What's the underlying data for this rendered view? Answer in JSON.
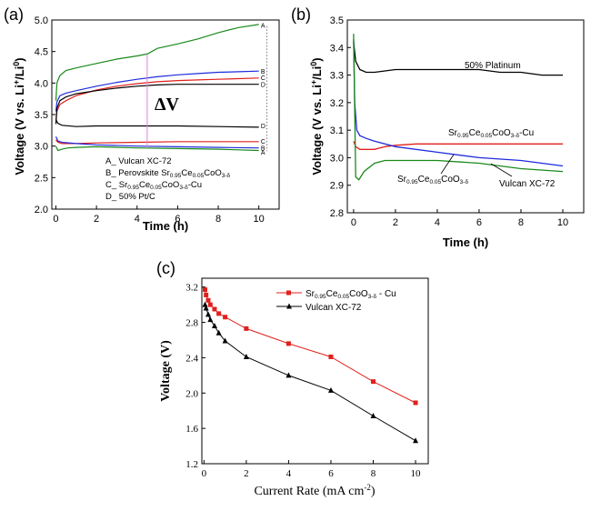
{
  "chart_data": [
    {
      "panel": "(a)",
      "type": "line",
      "xlabel": "Time (h)",
      "ylabel": "Voltage (V vs. Li+/Li0)",
      "xlim": [
        -0.2,
        11
      ],
      "ylim": [
        2.0,
        5.0
      ],
      "xticks": [
        "0",
        "2",
        "4",
        "6",
        "8",
        "10"
      ],
      "yticks": [
        "2.0",
        "2.5",
        "3.0",
        "3.5",
        "4.0",
        "4.5",
        "5.0"
      ],
      "annotation": "ΔV",
      "legend": [
        "A_ Vulcan XC-72",
        "B_ Perovskite Sr0.95Ce0.05CoO3-δ",
        "C_ Sr0.95Ce0.05CoO3-δ-Cu",
        "D_ 50% Pt/C"
      ],
      "end_labels": [
        {
          "label": "A",
          "y": 4.92
        },
        {
          "label": "B",
          "y": 4.19
        },
        {
          "label": "C",
          "y": 4.09
        },
        {
          "label": "D",
          "y": 3.98
        },
        {
          "label": "D",
          "y": 3.33
        },
        {
          "label": "C",
          "y": 3.08
        },
        {
          "label": "B",
          "y": 2.97
        },
        {
          "label": "A",
          "y": 2.91
        }
      ],
      "series": [
        {
          "key": "A",
          "phase": "charge",
          "color": "#1a8a1a",
          "x": [
            0,
            0.05,
            0.2,
            0.5,
            1,
            2,
            3,
            4,
            4.5,
            5,
            6,
            7,
            8,
            9,
            10
          ],
          "y": [
            3.72,
            4.0,
            4.12,
            4.2,
            4.24,
            4.31,
            4.38,
            4.43,
            4.46,
            4.55,
            4.62,
            4.7,
            4.8,
            4.88,
            4.93
          ]
        },
        {
          "key": "B",
          "phase": "charge",
          "color": "#1f2bdc",
          "x": [
            0,
            0.05,
            0.2,
            0.5,
            1,
            2,
            3,
            4,
            5,
            6,
            7,
            8,
            9,
            10
          ],
          "y": [
            3.55,
            3.7,
            3.8,
            3.84,
            3.88,
            3.95,
            4.01,
            4.06,
            4.1,
            4.13,
            4.15,
            4.17,
            4.18,
            4.19
          ]
        },
        {
          "key": "C",
          "phase": "charge",
          "color": "#e0201c",
          "x": [
            0,
            0.05,
            0.2,
            0.5,
            1,
            2,
            3,
            4,
            5,
            6,
            7,
            8,
            9,
            10
          ],
          "y": [
            3.4,
            3.55,
            3.66,
            3.72,
            3.8,
            3.89,
            3.95,
            3.99,
            4.02,
            4.04,
            4.05,
            4.06,
            4.07,
            4.08
          ]
        },
        {
          "key": "D",
          "phase": "charge",
          "color": "#000000",
          "x": [
            0,
            0.05,
            0.2,
            0.5,
            1,
            2,
            3,
            4,
            5,
            6,
            7,
            8,
            9,
            10
          ],
          "y": [
            3.35,
            3.6,
            3.72,
            3.78,
            3.83,
            3.88,
            3.92,
            3.95,
            3.97,
            3.98,
            3.98,
            3.98,
            3.98,
            3.98
          ]
        },
        {
          "key": "D",
          "phase": "discharge",
          "color": "#000000",
          "x": [
            0,
            0.1,
            0.3,
            1,
            2,
            4,
            6,
            8,
            10
          ],
          "y": [
            3.42,
            3.36,
            3.33,
            3.31,
            3.32,
            3.32,
            3.32,
            3.31,
            3.3
          ]
        },
        {
          "key": "C",
          "phase": "discharge",
          "color": "#e0201c",
          "x": [
            0,
            0.1,
            0.3,
            1,
            2,
            4,
            6,
            8,
            10
          ],
          "y": [
            3.1,
            3.06,
            3.04,
            3.04,
            3.05,
            3.06,
            3.07,
            3.07,
            3.07
          ]
        },
        {
          "key": "B",
          "phase": "discharge",
          "color": "#1f2bdc",
          "x": [
            0,
            0.1,
            0.3,
            1,
            2,
            4,
            6,
            8,
            10
          ],
          "y": [
            3.15,
            3.08,
            3.06,
            3.04,
            3.02,
            3.0,
            2.99,
            2.98,
            2.97
          ]
        },
        {
          "key": "A",
          "phase": "discharge",
          "color": "#1a8a1a",
          "x": [
            0,
            0.1,
            0.3,
            0.6,
            1,
            2,
            4,
            6,
            8,
            10
          ],
          "y": [
            3.0,
            2.93,
            2.95,
            2.97,
            2.98,
            2.99,
            2.97,
            2.96,
            2.95,
            2.93
          ]
        }
      ]
    },
    {
      "panel": "(b)",
      "type": "line",
      "xlabel": "Time (h)",
      "ylabel": "Voltage (V vs. Li+/Li0)",
      "xlim": [
        -0.3,
        11
      ],
      "ylim": [
        2.8,
        3.5
      ],
      "xticks": [
        "0",
        "2",
        "4",
        "6",
        "8",
        "10"
      ],
      "yticks": [
        "2.8",
        "2.9",
        "3.0",
        "3.1",
        "3.2",
        "3.3",
        "3.4",
        "3.5"
      ],
      "labels": [
        "50% Platinum",
        "Sr0.95Ce0.05CoO3-δ-Cu",
        "Sr0.95Ce0.05CoO3-δ",
        "Vulcan XC-72"
      ],
      "series": [
        {
          "name": "50% Platinum",
          "color": "#000000",
          "x": [
            0,
            0.1,
            0.3,
            0.6,
            1,
            2,
            3,
            4,
            5,
            6,
            7,
            8,
            9,
            10
          ],
          "y": [
            3.42,
            3.35,
            3.32,
            3.31,
            3.31,
            3.32,
            3.32,
            3.32,
            3.32,
            3.32,
            3.31,
            3.31,
            3.3,
            3.3
          ]
        },
        {
          "name": "Sr0.95Ce0.05CoO3-δ-Cu",
          "color": "#e0201c",
          "x": [
            0,
            0.1,
            0.3,
            0.6,
            1,
            1.5,
            2,
            3,
            4,
            6,
            8,
            10
          ],
          "y": [
            3.06,
            3.04,
            3.03,
            3.03,
            3.03,
            3.04,
            3.045,
            3.05,
            3.05,
            3.05,
            3.05,
            3.05
          ]
        },
        {
          "name": "Sr0.95Ce0.05CoO3-δ",
          "color": "#1f2bdc",
          "x": [
            0,
            0.05,
            0.15,
            0.3,
            0.6,
            1,
            2,
            4,
            6,
            8,
            10
          ],
          "y": [
            3.43,
            3.2,
            3.1,
            3.08,
            3.07,
            3.06,
            3.04,
            3.02,
            3.0,
            2.99,
            2.97
          ]
        },
        {
          "name": "Vulcan XC-72",
          "color": "#1a8a1a",
          "x": [
            0,
            0.1,
            0.25,
            0.5,
            1,
            1.5,
            2,
            4,
            6,
            8,
            10
          ],
          "y": [
            3.45,
            2.93,
            2.92,
            2.95,
            2.98,
            2.99,
            2.99,
            2.99,
            2.98,
            2.96,
            2.95
          ]
        }
      ]
    },
    {
      "panel": "(c)",
      "type": "line",
      "xlabel": "Current Rate (mA cm-2)",
      "ylabel": "Voltage (V)",
      "xlim": [
        -0.1,
        10.6
      ],
      "ylim": [
        1.2,
        3.3
      ],
      "xticks": [
        "0",
        "2",
        "4",
        "6",
        "8",
        "10"
      ],
      "yticks": [
        "1.2",
        "1.6",
        "2.0",
        "2.4",
        "2.8",
        "3.2"
      ],
      "series": [
        {
          "name": "Sr0.95Ce0.05CoO3-δ - Cu",
          "color": "#e0201c",
          "marker": "square",
          "x": [
            0.05,
            0.1,
            0.2,
            0.3,
            0.5,
            0.7,
            1,
            2,
            4,
            6,
            8,
            10
          ],
          "y": [
            3.17,
            3.11,
            3.05,
            3.0,
            2.95,
            2.9,
            2.86,
            2.73,
            2.56,
            2.41,
            2.13,
            1.89
          ]
        },
        {
          "name": "Vulcan XC-72",
          "color": "#000000",
          "marker": "triangle",
          "x": [
            0.05,
            0.1,
            0.2,
            0.3,
            0.5,
            0.7,
            1,
            2,
            4,
            6,
            8,
            10
          ],
          "y": [
            3.0,
            2.96,
            2.89,
            2.83,
            2.76,
            2.68,
            2.59,
            2.41,
            2.2,
            2.03,
            1.74,
            1.46
          ]
        }
      ]
    }
  ]
}
